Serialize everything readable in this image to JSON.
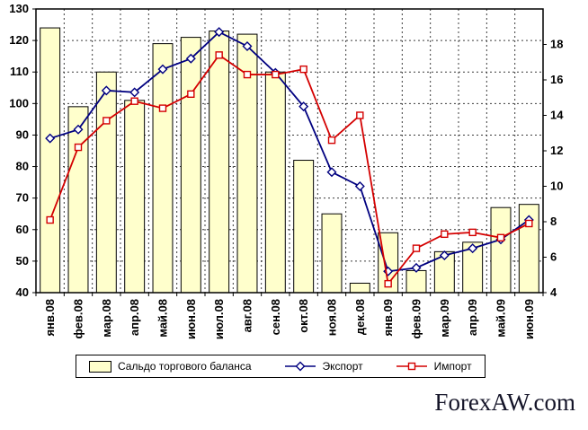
{
  "watermark": "ForexAW.com",
  "legend": {
    "balance": "Сальдо торгового баланса",
    "export": "Экспорт",
    "import": "Импорт"
  },
  "colors": {
    "grid": "#3c3c3c",
    "axis_text": "#000000",
    "plot_border": "#000000",
    "background": "#ffffff"
  },
  "chart_data": {
    "type": "bar+line combo, dual axis",
    "title": "",
    "xlabel": "",
    "ylabel": "",
    "grid": "dashed",
    "legend_position": "bottom",
    "categories": [
      "янв.08",
      "фев.08",
      "мар.08",
      "апр.08",
      "май.08",
      "июн.08",
      "июл.08",
      "авг.08",
      "сен.08",
      "окт.08",
      "ноя.08",
      "дек.08",
      "янв.09",
      "фев.09",
      "мар.09",
      "апр.09",
      "май.09",
      "июн.09"
    ],
    "series": [
      {
        "name": "Сальдо торгового баланса",
        "type": "bar",
        "axis": "left",
        "fill": "#ffffcc",
        "stroke": "#000000",
        "values": [
          124,
          99,
          110,
          101,
          119,
          121,
          123,
          122,
          110,
          82,
          65,
          43,
          59,
          47,
          53,
          56,
          67,
          68
        ]
      },
      {
        "name": "Экспорт",
        "type": "line",
        "axis": "right",
        "marker": "diamond",
        "color": "#000080",
        "values": [
          12.7,
          13.2,
          15.4,
          15.3,
          16.6,
          17.2,
          18.7,
          17.9,
          16.4,
          14.5,
          10.8,
          10.0,
          5.2,
          5.4,
          6.1,
          6.5,
          7.0,
          8.1
        ]
      },
      {
        "name": "Импорт",
        "type": "line",
        "axis": "right",
        "marker": "square",
        "color": "#d40000",
        "values": [
          8.1,
          12.2,
          13.7,
          14.8,
          14.4,
          15.2,
          17.4,
          16.3,
          16.3,
          16.6,
          12.6,
          14.0,
          4.5,
          6.5,
          7.3,
          7.4,
          7.1,
          7.9
        ]
      }
    ],
    "left_axis": {
      "min": 40,
      "max": 130,
      "ticks": [
        40,
        50,
        60,
        70,
        80,
        90,
        100,
        110,
        120,
        130
      ]
    },
    "right_axis": {
      "min": 4,
      "max": 20,
      "ticks": [
        4,
        6,
        8,
        10,
        12,
        14,
        16,
        18
      ]
    }
  }
}
